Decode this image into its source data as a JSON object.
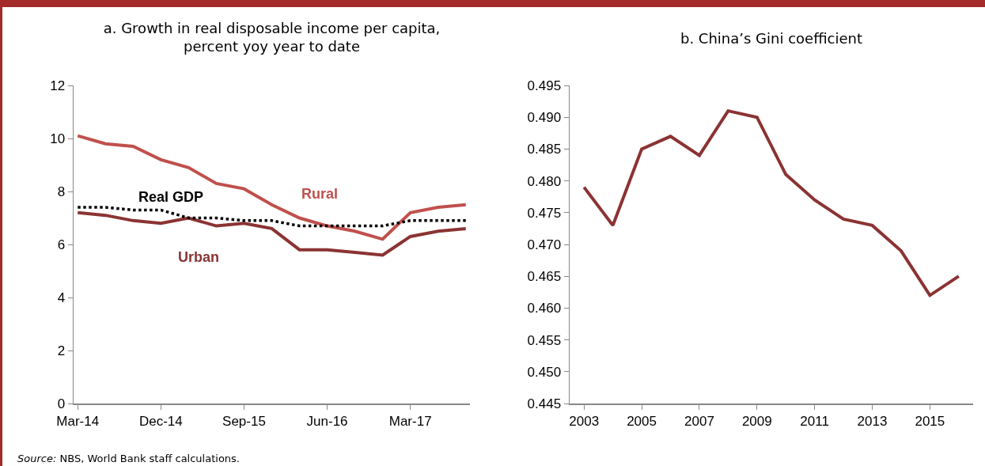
{
  "chart_data": [
    {
      "type": "line",
      "title": "a. Growth in real disposable income per capita,\npercent yoy year to date",
      "categories": [
        "Mar-14",
        null,
        null,
        "Dec-14",
        null,
        null,
        "Sep-15",
        null,
        null,
        "Jun-16",
        null,
        null,
        "Mar-17",
        null,
        null
      ],
      "series": [
        {
          "name": "Rural",
          "color": "#c0504d",
          "values": [
            10.1,
            9.8,
            9.7,
            9.2,
            8.9,
            8.3,
            8.1,
            7.5,
            7.0,
            6.7,
            6.5,
            6.2,
            7.2,
            7.4,
            7.5
          ]
        },
        {
          "name": "Urban",
          "color": "#8b3333",
          "values": [
            7.2,
            7.1,
            6.9,
            6.8,
            7.0,
            6.7,
            6.8,
            6.6,
            5.8,
            5.8,
            5.7,
            5.6,
            6.3,
            6.5,
            6.6
          ]
        },
        {
          "name": "Real GDP",
          "color": "#000000",
          "line_style": "dotted",
          "values": [
            7.4,
            7.4,
            7.3,
            7.3,
            7.0,
            7.0,
            6.9,
            6.9,
            6.7,
            6.7,
            6.7,
            6.7,
            6.9,
            6.9,
            6.9
          ]
        }
      ],
      "ylim": [
        0,
        12
      ],
      "yticks": [
        0,
        2,
        4,
        6,
        8,
        10,
        12
      ],
      "grid": false,
      "legend": false,
      "marker": "none",
      "line_style": "solid",
      "annotations": [
        "Source: NBS, World Bank staff calculations."
      ]
    },
    {
      "type": "line",
      "title": "b. China’s Gini coefficient",
      "x": [
        2003,
        2004,
        2005,
        2006,
        2007,
        2008,
        2009,
        2010,
        2011,
        2012,
        2013,
        2014,
        2015,
        2016
      ],
      "series": [
        {
          "color": "#8b3333",
          "values": [
            0.479,
            0.473,
            0.485,
            0.487,
            0.484,
            0.491,
            0.49,
            0.481,
            0.477,
            0.474,
            0.473,
            0.469,
            0.462,
            0.465
          ]
        }
      ],
      "xlim": [
        2002.5,
        2016.5
      ],
      "xticks": [
        2003,
        2005,
        2007,
        2009,
        2011,
        2013,
        2015
      ],
      "ylim": [
        0.445,
        0.495
      ],
      "yticks": [
        0.445,
        {
          "value": 0.45,
          "label": "0.450"
        },
        0.455,
        {
          "value": 0.46,
          "label": "0.460"
        },
        0.465,
        {
          "value": 0.47,
          "label": "0.470"
        },
        0.475,
        {
          "value": 0.48,
          "label": "0.480"
        },
        0.485,
        {
          "value": 0.49,
          "label": "0.490"
        },
        0.495
      ],
      "grid": false,
      "legend": false,
      "marker": "none",
      "line_style": "solid"
    }
  ]
}
